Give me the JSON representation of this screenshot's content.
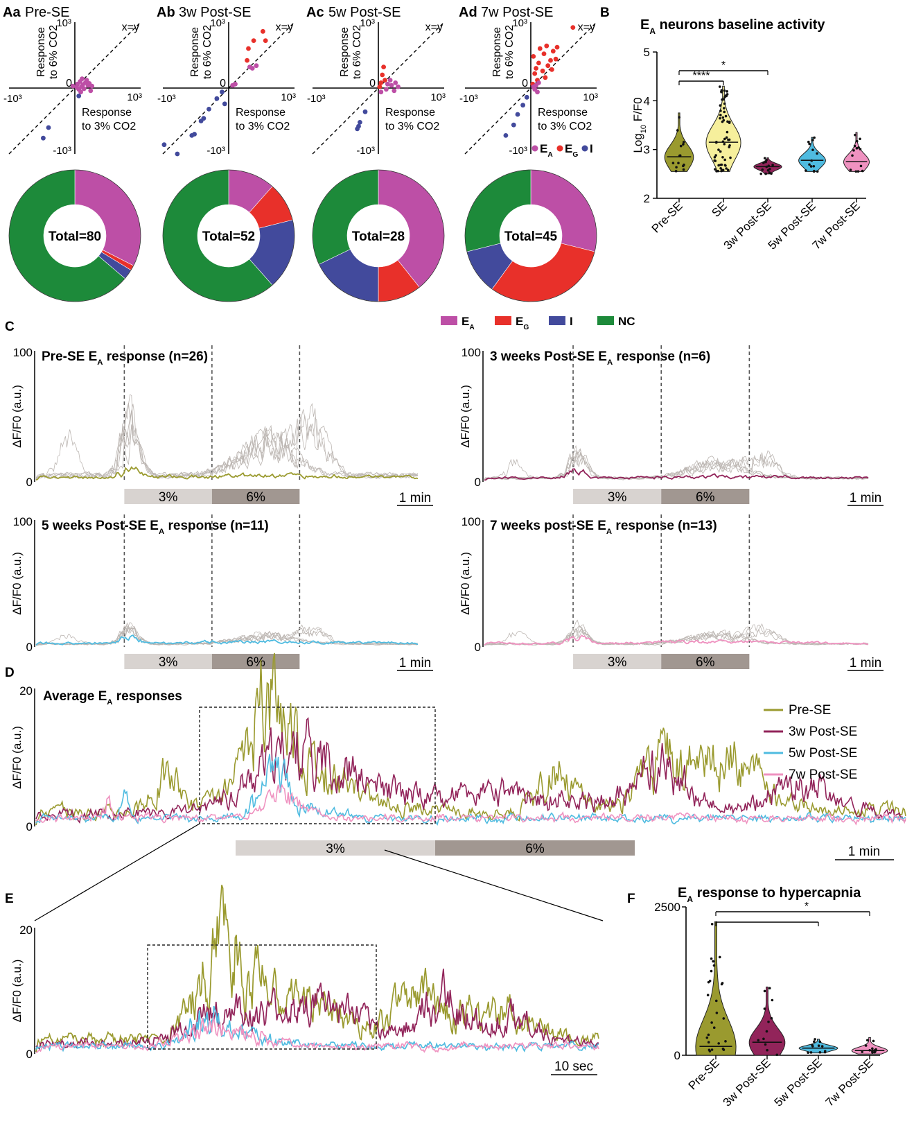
{
  "colors": {
    "EA": "#bd4fa6",
    "EG": "#e8302a",
    "I": "#424a9c",
    "NC": "#1d8a3a",
    "pre": "#9a9a2f",
    "w3": "#92245a",
    "w5": "#4fbbe0",
    "w7": "#ef92c0",
    "trace_gray": "#bcb6b2",
    "bar3": "#d8d3d0",
    "bar6": "#a19791"
  },
  "chart_data": [
    {
      "panel": "A",
      "type": "scatter",
      "common": {
        "y_label_lines": [
          "Response",
          "to 6% CO2"
        ],
        "x_label_lines": [
          "Response",
          "to 3% CO2"
        ],
        "pos_tick": "10³",
        "neg_tick": "-10³",
        "origin": "0",
        "identity_label": "x=y",
        "range": [
          -1000,
          1000
        ]
      },
      "legend": [
        {
          "key": "EA",
          "label": "E",
          "sub": "A"
        },
        {
          "key": "EG",
          "label": "E",
          "sub": "G"
        },
        {
          "key": "I",
          "label": "I",
          "sub": ""
        }
      ],
      "subpanels": [
        {
          "letter": "Aa",
          "title": "Pre-SE",
          "points": [
            {
              "x": 40,
              "y": 60,
              "c": "EA"
            },
            {
              "x": 80,
              "y": 100,
              "c": "EA"
            },
            {
              "x": 120,
              "y": 50,
              "c": "EA"
            },
            {
              "x": 160,
              "y": 80,
              "c": "EA"
            },
            {
              "x": 200,
              "y": 40,
              "c": "EA"
            },
            {
              "x": 60,
              "y": -20,
              "c": "EA"
            },
            {
              "x": 100,
              "y": 20,
              "c": "EA"
            },
            {
              "x": 140,
              "y": -10,
              "c": "EA"
            },
            {
              "x": 220,
              "y": 70,
              "c": "EA"
            },
            {
              "x": 180,
              "y": 120,
              "c": "EA"
            },
            {
              "x": 260,
              "y": 30,
              "c": "EA"
            },
            {
              "x": 30,
              "y": 10,
              "c": "EA"
            },
            {
              "x": 90,
              "y": -60,
              "c": "EA"
            },
            {
              "x": -30,
              "y": 30,
              "c": "EA"
            },
            {
              "x": 240,
              "y": -40,
              "c": "EA"
            },
            {
              "x": 110,
              "y": 140,
              "c": "EA"
            },
            {
              "x": 60,
              "y": -120,
              "c": "I"
            },
            {
              "x": -400,
              "y": -600,
              "c": "I"
            },
            {
              "x": -480,
              "y": -760,
              "c": "I"
            }
          ]
        },
        {
          "letter": "Ab",
          "title": "3w Post-SE",
          "points": [
            {
              "x": 300,
              "y": 600,
              "c": "EG"
            },
            {
              "x": 380,
              "y": 720,
              "c": "EG"
            },
            {
              "x": 520,
              "y": 860,
              "c": "EG"
            },
            {
              "x": 560,
              "y": 720,
              "c": "EG"
            },
            {
              "x": 280,
              "y": 420,
              "c": "EG"
            },
            {
              "x": 320,
              "y": 320,
              "c": "EA"
            },
            {
              "x": 360,
              "y": 300,
              "c": "EA"
            },
            {
              "x": 60,
              "y": 40,
              "c": "EA"
            },
            {
              "x": 100,
              "y": 60,
              "c": "EA"
            },
            {
              "x": 420,
              "y": 340,
              "c": "EA"
            },
            {
              "x": -100,
              "y": -60,
              "c": "I"
            },
            {
              "x": -180,
              "y": -160,
              "c": "I"
            },
            {
              "x": -300,
              "y": -320,
              "c": "I"
            },
            {
              "x": -380,
              "y": -460,
              "c": "I"
            },
            {
              "x": -420,
              "y": -500,
              "c": "I"
            },
            {
              "x": -520,
              "y": -700,
              "c": "I"
            },
            {
              "x": -560,
              "y": -720,
              "c": "I"
            },
            {
              "x": -780,
              "y": -1000,
              "c": "I"
            },
            {
              "x": -980,
              "y": -860,
              "c": "I"
            },
            {
              "x": -60,
              "y": -240,
              "c": "I"
            }
          ]
        },
        {
          "letter": "Ac",
          "title": "5w Post-SE",
          "points": [
            {
              "x": 80,
              "y": 320,
              "c": "EG"
            },
            {
              "x": 60,
              "y": 200,
              "c": "EG"
            },
            {
              "x": 40,
              "y": 80,
              "c": "EG"
            },
            {
              "x": 100,
              "y": 120,
              "c": "EG"
            },
            {
              "x": 20,
              "y": 20,
              "c": "EG"
            },
            {
              "x": 140,
              "y": 60,
              "c": "EA"
            },
            {
              "x": 200,
              "y": 40,
              "c": "EA"
            },
            {
              "x": 260,
              "y": 80,
              "c": "EA"
            },
            {
              "x": 120,
              "y": -20,
              "c": "EA"
            },
            {
              "x": 300,
              "y": 20,
              "c": "EA"
            },
            {
              "x": 40,
              "y": -60,
              "c": "EA"
            },
            {
              "x": 180,
              "y": 120,
              "c": "EA"
            },
            {
              "x": 240,
              "y": -40,
              "c": "EA"
            },
            {
              "x": -200,
              "y": -360,
              "c": "I"
            },
            {
              "x": -280,
              "y": -520,
              "c": "I"
            },
            {
              "x": -300,
              "y": -580,
              "c": "I"
            },
            {
              "x": -320,
              "y": -620,
              "c": "I"
            }
          ]
        },
        {
          "letter": "Ad",
          "title": "7w Post-SE",
          "points": [
            {
              "x": 60,
              "y": 220,
              "c": "EG"
            },
            {
              "x": 40,
              "y": 480,
              "c": "EG"
            },
            {
              "x": 140,
              "y": 600,
              "c": "EG"
            },
            {
              "x": 200,
              "y": 520,
              "c": "EG"
            },
            {
              "x": 260,
              "y": 340,
              "c": "EG"
            },
            {
              "x": 300,
              "y": 420,
              "c": "EG"
            },
            {
              "x": 120,
              "y": 380,
              "c": "EG"
            },
            {
              "x": 80,
              "y": 300,
              "c": "EG"
            },
            {
              "x": 340,
              "y": 560,
              "c": "EG"
            },
            {
              "x": 380,
              "y": 440,
              "c": "EG"
            },
            {
              "x": 400,
              "y": 620,
              "c": "EG"
            },
            {
              "x": 240,
              "y": 640,
              "c": "EG"
            },
            {
              "x": 180,
              "y": 260,
              "c": "EG"
            },
            {
              "x": 220,
              "y": 160,
              "c": "EG"
            },
            {
              "x": 320,
              "y": 280,
              "c": "EG"
            },
            {
              "x": 640,
              "y": 920,
              "c": "EG"
            },
            {
              "x": 100,
              "y": 120,
              "c": "EG"
            },
            {
              "x": 30,
              "y": 60,
              "c": "EG"
            },
            {
              "x": 80,
              "y": 40,
              "c": "EA"
            },
            {
              "x": 60,
              "y": -20,
              "c": "EA"
            },
            {
              "x": 120,
              "y": 80,
              "c": "EA"
            },
            {
              "x": 40,
              "y": 20,
              "c": "EA"
            },
            {
              "x": 100,
              "y": -60,
              "c": "EA"
            },
            {
              "x": -60,
              "y": -140,
              "c": "I"
            },
            {
              "x": -120,
              "y": -260,
              "c": "I"
            },
            {
              "x": -200,
              "y": -400,
              "c": "I"
            },
            {
              "x": -260,
              "y": -560,
              "c": "I"
            },
            {
              "x": -380,
              "y": -720,
              "c": "I"
            }
          ]
        }
      ]
    },
    {
      "panel": "A-donuts",
      "type": "pie",
      "total_prefix": "Total=",
      "legend": [
        {
          "key": "EA",
          "label": "E",
          "sub": "A"
        },
        {
          "key": "EG",
          "label": "E",
          "sub": "G"
        },
        {
          "key": "I",
          "label": "I",
          "sub": ""
        },
        {
          "key": "NC",
          "label": "NC",
          "sub": ""
        }
      ],
      "donuts": [
        {
          "total": "80",
          "slices": [
            {
              "k": "EA",
              "v": 26
            },
            {
              "k": "EG",
              "v": 1
            },
            {
              "k": "I",
              "v": 2
            },
            {
              "k": "NC",
              "v": 51
            }
          ]
        },
        {
          "total": "52",
          "slices": [
            {
              "k": "EA",
              "v": 6
            },
            {
              "k": "EG",
              "v": 5
            },
            {
              "k": "I",
              "v": 9
            },
            {
              "k": "NC",
              "v": 32
            }
          ]
        },
        {
          "total": "28",
          "slices": [
            {
              "k": "EA",
              "v": 11
            },
            {
              "k": "EG",
              "v": 3
            },
            {
              "k": "I",
              "v": 5
            },
            {
              "k": "NC",
              "v": 9
            }
          ]
        },
        {
          "total": "45",
          "slices": [
            {
              "k": "EA",
              "v": 13
            },
            {
              "k": "EG",
              "v": 14
            },
            {
              "k": "I",
              "v": 5
            },
            {
              "k": "NC",
              "v": 13
            }
          ]
        }
      ]
    },
    {
      "panel": "B",
      "type": "violin",
      "letter": "B",
      "title_main": "E",
      "title_sub": "A",
      "title_rest": " neurons baseline activity",
      "ylabel_main": "Log",
      "ylabel_sub": "10",
      "ylabel_rest": " F/F0",
      "ylim": [
        2,
        5
      ],
      "yticks": [
        2,
        3,
        4,
        5
      ],
      "categories": [
        "Pre-SE",
        "SE",
        "3w Post-SE",
        "5w Post-SE",
        "7w Post-SE"
      ],
      "fills": [
        "pre",
        "SE_yellow",
        "w3",
        "w5",
        "w7"
      ],
      "ranges": [
        [
          2.55,
          3.75
        ],
        [
          2.55,
          4.3
        ],
        [
          2.5,
          2.83
        ],
        [
          2.55,
          3.25
        ],
        [
          2.55,
          3.35
        ]
      ],
      "medians": [
        2.85,
        3.15,
        2.65,
        2.78,
        2.75
      ],
      "widths": [
        0.36,
        0.44,
        0.36,
        0.34,
        0.32
      ],
      "sig": [
        {
          "from": 0,
          "to": 1,
          "label": "****"
        },
        {
          "from": 0,
          "to": 2,
          "label": "*"
        }
      ]
    },
    {
      "panel": "C",
      "type": "line",
      "letter": "C",
      "ylabel": "ΔF/F0 (a.u.)",
      "ylim": [
        0,
        100
      ],
      "yticks": [
        "0",
        "100"
      ],
      "stim": [
        "3%",
        "6%"
      ],
      "scale": "1 min",
      "subpanels": [
        {
          "title": "Pre-SE E",
          "sub": "A",
          "tail": " response (n=26)",
          "color": "pre"
        },
        {
          "title": "3 weeks Post-SE E",
          "sub": "A",
          "tail": " response (n=6)",
          "color": "w3"
        },
        {
          "title": "5 weeks Post-SE E",
          "sub": "A",
          "tail": " response (n=11)",
          "color": "w5"
        },
        {
          "title": "7 weeks post-SE E",
          "sub": "A",
          "tail": " response (n=13)",
          "color": "w7"
        }
      ]
    },
    {
      "panel": "D",
      "type": "line",
      "letter": "D",
      "title": "Average E",
      "title_sub": "A",
      "title_tail": " responses",
      "ylabel": "ΔF/F0 (a.u.)",
      "ylim": [
        0,
        20
      ],
      "yticks": [
        "0",
        "20"
      ],
      "stim": [
        "3%",
        "6%"
      ],
      "scale": "1 min",
      "series": [
        {
          "name": "Pre-SE",
          "color": "pre"
        },
        {
          "name": "3w Post-SE",
          "color": "w3"
        },
        {
          "name": "5w Post-SE",
          "color": "w5"
        },
        {
          "name": "7w Post-SE",
          "color": "w7"
        }
      ]
    },
    {
      "panel": "E",
      "type": "line",
      "letter": "E",
      "ylabel": "ΔF/F0 (a.u.)",
      "ylim": [
        0,
        20
      ],
      "yticks": [
        "0",
        "20"
      ],
      "scale": "10 sec"
    },
    {
      "panel": "F",
      "type": "violin",
      "letter": "F",
      "title_main": "E",
      "title_sub": "A",
      "title_rest": " response to hypercapnia",
      "ylim": [
        0,
        2500
      ],
      "yticks": [
        "0",
        "2500"
      ],
      "categories": [
        "Pre-SE",
        "3w Post-SE",
        "5w Post-SE",
        "7w Post-SE"
      ],
      "fills": [
        "pre",
        "w3",
        "w5",
        "w7"
      ],
      "ranges": [
        [
          0,
          2250
        ],
        [
          0,
          1150
        ],
        [
          40,
          270
        ],
        [
          20,
          300
        ]
      ],
      "medians": [
        150,
        220,
        120,
        80
      ],
      "widths": [
        0.42,
        0.38,
        0.42,
        0.38
      ],
      "sig": [
        {
          "from": 0,
          "to": 2,
          "label": ""
        },
        {
          "from": 0,
          "to": 3,
          "label": "*"
        }
      ]
    }
  ]
}
